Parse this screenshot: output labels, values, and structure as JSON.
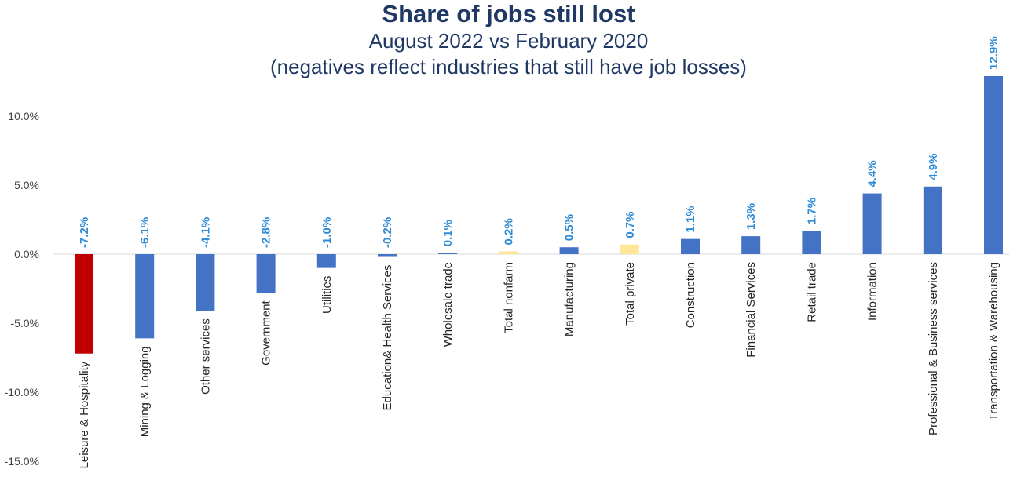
{
  "chart_data": {
    "type": "bar",
    "title": "Share of jobs still lost",
    "subtitle": "August 2022 vs February 2020",
    "subtitle2": "(negatives reflect industries that still have job losses)",
    "categories": [
      "Leisure & Hospitality",
      "Mining & Logging",
      "Other services",
      "Government",
      "Utilities",
      "Education& Health Services",
      "Wholesale trade",
      "Total nonfarm",
      "Manufacturing",
      "Total private",
      "Construction",
      "Financial Services",
      "Retail trade",
      "Information",
      "Professional & Business services",
      "Transportation & Warehousing"
    ],
    "values": [
      -7.2,
      -6.1,
      -4.1,
      -2.8,
      -1.0,
      -0.2,
      0.1,
      0.2,
      0.5,
      0.7,
      1.1,
      1.3,
      1.7,
      4.4,
      4.9,
      12.9
    ],
    "data_labels": [
      "-7.2%",
      "-6.1%",
      "-4.1%",
      "-2.8%",
      "-1.0%",
      "-0.2%",
      "0.1%",
      "0.2%",
      "0.5%",
      "0.7%",
      "1.1%",
      "1.3%",
      "1.7%",
      "4.4%",
      "4.9%",
      "12.9%"
    ],
    "bar_colors": [
      "#c00000",
      "#4472c4",
      "#4472c4",
      "#4472c4",
      "#4472c4",
      "#4472c4",
      "#4472c4",
      "#ffe699",
      "#4472c4",
      "#ffe699",
      "#4472c4",
      "#4472c4",
      "#4472c4",
      "#4472c4",
      "#4472c4",
      "#4472c4"
    ],
    "yticks": [
      10,
      5,
      0,
      -5,
      -10,
      -15
    ],
    "ytick_labels": [
      "10.0%",
      "5.0%",
      "0.0%",
      "-5.0%",
      "-10.0%",
      "-15.0%"
    ],
    "ylim": [
      -15,
      10
    ],
    "xlabel": "",
    "ylabel": "",
    "grid": false,
    "legend": "none"
  }
}
